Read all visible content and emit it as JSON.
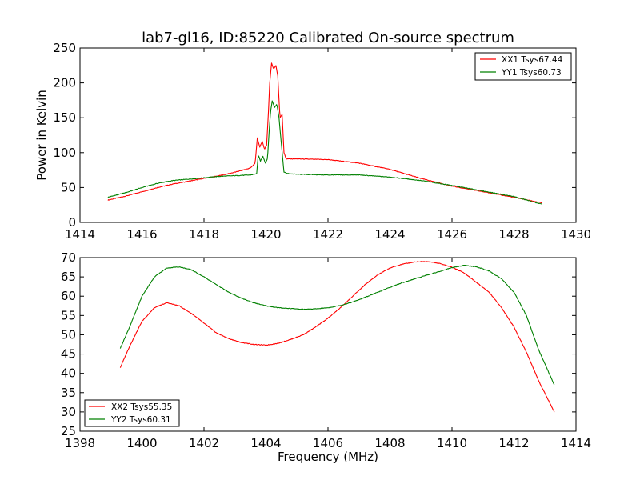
{
  "colors": {
    "xx": "#ff0000",
    "yy": "#008000",
    "axes": "#000000",
    "background": "#ffffff"
  },
  "chart_data": [
    {
      "type": "line",
      "title": "lab7-gl16, ID:85220 Calibrated On-source spectrum",
      "xlabel": "",
      "ylabel": "Power in Kelvin",
      "xlim": [
        1414,
        1430
      ],
      "ylim": [
        0,
        250
      ],
      "xticks": [
        "1414",
        "1416",
        "1418",
        "1420",
        "1422",
        "1424",
        "1426",
        "1428",
        "1430"
      ],
      "yticks": [
        "0",
        "50",
        "100",
        "150",
        "200",
        "250"
      ],
      "grid": false,
      "legend_position": "top-right",
      "series": [
        {
          "name": "XX1 Tsys67.44",
          "color": "#ff0000",
          "points": [
            [
              1414.9,
              32
            ],
            [
              1415.5,
              38
            ],
            [
              1416,
              44
            ],
            [
              1416.5,
              50
            ],
            [
              1417,
              55
            ],
            [
              1417.5,
              59
            ],
            [
              1418,
              63
            ],
            [
              1418.5,
              67
            ],
            [
              1419,
              72
            ],
            [
              1419.5,
              78
            ],
            [
              1419.65,
              85
            ],
            [
              1419.72,
              121
            ],
            [
              1419.8,
              108
            ],
            [
              1419.88,
              116
            ],
            [
              1419.95,
              105
            ],
            [
              1420.02,
              110
            ],
            [
              1420.08,
              160
            ],
            [
              1420.12,
              200
            ],
            [
              1420.18,
              228
            ],
            [
              1420.25,
              220
            ],
            [
              1420.32,
              225
            ],
            [
              1420.38,
              210
            ],
            [
              1420.45,
              150
            ],
            [
              1420.52,
              155
            ],
            [
              1420.58,
              100
            ],
            [
              1420.65,
              91
            ],
            [
              1421,
              91
            ],
            [
              1422,
              90
            ],
            [
              1423,
              85
            ],
            [
              1424,
              76
            ],
            [
              1425,
              63
            ],
            [
              1426,
              52
            ],
            [
              1427,
              44
            ],
            [
              1428,
              36
            ],
            [
              1428.9,
              28
            ]
          ]
        },
        {
          "name": "YY1 Tsys60.73",
          "color": "#008000",
          "points": [
            [
              1414.9,
              36
            ],
            [
              1415.5,
              43
            ],
            [
              1416,
              50
            ],
            [
              1416.5,
              56
            ],
            [
              1417,
              60
            ],
            [
              1417.5,
              62
            ],
            [
              1418,
              64
            ],
            [
              1418.5,
              66
            ],
            [
              1419,
              67
            ],
            [
              1419.5,
              68
            ],
            [
              1419.7,
              70
            ],
            [
              1419.75,
              97
            ],
            [
              1419.82,
              88
            ],
            [
              1419.9,
              95
            ],
            [
              1419.98,
              85
            ],
            [
              1420.05,
              92
            ],
            [
              1420.1,
              130
            ],
            [
              1420.15,
              160
            ],
            [
              1420.2,
              174
            ],
            [
              1420.28,
              165
            ],
            [
              1420.35,
              170
            ],
            [
              1420.42,
              150
            ],
            [
              1420.5,
              110
            ],
            [
              1420.58,
              72
            ],
            [
              1420.7,
              70
            ],
            [
              1421,
              69
            ],
            [
              1422,
              68
            ],
            [
              1423,
              68
            ],
            [
              1424,
              65
            ],
            [
              1425,
              60
            ],
            [
              1426,
              53
            ],
            [
              1427,
              45
            ],
            [
              1428,
              37
            ],
            [
              1428.9,
              26
            ]
          ]
        }
      ]
    },
    {
      "type": "line",
      "title": "",
      "xlabel": "Frequency (MHz)",
      "ylabel": "",
      "xlim": [
        1398,
        1414
      ],
      "ylim": [
        25,
        70
      ],
      "xticks": [
        "1398",
        "1400",
        "1402",
        "1404",
        "1406",
        "1408",
        "1410",
        "1412",
        "1414"
      ],
      "yticks": [
        "25",
        "30",
        "35",
        "40",
        "45",
        "50",
        "55",
        "60",
        "65",
        "70"
      ],
      "grid": false,
      "legend_position": "bottom-left",
      "series": [
        {
          "name": "XX2 Tsys55.35",
          "color": "#ff0000",
          "points": [
            [
              1399.3,
              41.5
            ],
            [
              1399.6,
              47
            ],
            [
              1400,
              53.5
            ],
            [
              1400.4,
              57
            ],
            [
              1400.8,
              58.3
            ],
            [
              1401.2,
              57.5
            ],
            [
              1401.6,
              55.5
            ],
            [
              1402,
              53
            ],
            [
              1402.4,
              50.5
            ],
            [
              1402.8,
              49
            ],
            [
              1403.2,
              48
            ],
            [
              1403.6,
              47.5
            ],
            [
              1404,
              47.3
            ],
            [
              1404.4,
              47.8
            ],
            [
              1404.8,
              48.8
            ],
            [
              1405.2,
              50
            ],
            [
              1405.6,
              52
            ],
            [
              1406,
              54.3
            ],
            [
              1406.4,
              57
            ],
            [
              1406.8,
              60
            ],
            [
              1407.2,
              63
            ],
            [
              1407.6,
              65.5
            ],
            [
              1408,
              67.3
            ],
            [
              1408.4,
              68.3
            ],
            [
              1408.8,
              68.9
            ],
            [
              1409.2,
              69
            ],
            [
              1409.6,
              68.5
            ],
            [
              1410,
              67.5
            ],
            [
              1410.4,
              66
            ],
            [
              1410.8,
              63.5
            ],
            [
              1411.2,
              61
            ],
            [
              1411.6,
              57
            ],
            [
              1412,
              52
            ],
            [
              1412.4,
              45.5
            ],
            [
              1412.8,
              38
            ],
            [
              1413.3,
              30
            ]
          ]
        },
        {
          "name": "YY2 Tsys60.31",
          "color": "#008000",
          "points": [
            [
              1399.3,
              46.5
            ],
            [
              1399.6,
              52
            ],
            [
              1400,
              60
            ],
            [
              1400.4,
              65
            ],
            [
              1400.8,
              67.3
            ],
            [
              1401.2,
              67.6
            ],
            [
              1401.6,
              66.8
            ],
            [
              1402,
              65
            ],
            [
              1402.4,
              63
            ],
            [
              1402.8,
              61
            ],
            [
              1403.2,
              59.5
            ],
            [
              1403.6,
              58.3
            ],
            [
              1404,
              57.5
            ],
            [
              1404.4,
              57
            ],
            [
              1404.8,
              56.8
            ],
            [
              1405.2,
              56.6
            ],
            [
              1405.6,
              56.7
            ],
            [
              1406,
              57
            ],
            [
              1406.4,
              57.6
            ],
            [
              1406.8,
              58.5
            ],
            [
              1407.2,
              59.7
            ],
            [
              1407.6,
              61
            ],
            [
              1408,
              62.3
            ],
            [
              1408.4,
              63.5
            ],
            [
              1408.8,
              64.5
            ],
            [
              1409.2,
              65.5
            ],
            [
              1409.6,
              66.4
            ],
            [
              1410,
              67.4
            ],
            [
              1410.4,
              68
            ],
            [
              1410.8,
              67.6
            ],
            [
              1411.2,
              66.5
            ],
            [
              1411.6,
              64.5
            ],
            [
              1412,
              61
            ],
            [
              1412.4,
              55
            ],
            [
              1412.8,
              46
            ],
            [
              1413.3,
              37
            ]
          ]
        }
      ]
    }
  ]
}
